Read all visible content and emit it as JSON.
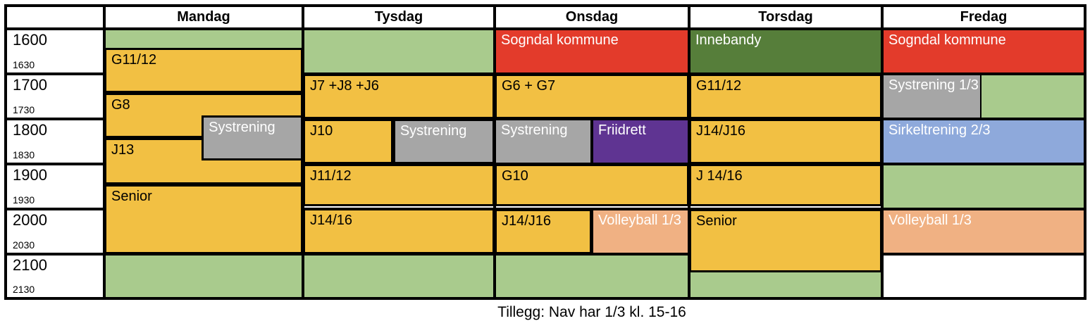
{
  "header": {
    "days": [
      "Mandag",
      "Tysdag",
      "Onsdag",
      "Torsdag",
      "Fredag"
    ]
  },
  "time_column": [
    {
      "hour": "1600",
      "half": "1630"
    },
    {
      "hour": "1700",
      "half": "1730"
    },
    {
      "hour": "1800",
      "half": "1830"
    },
    {
      "hour": "1900",
      "half": "1930"
    },
    {
      "hour": "2000",
      "half": "2030"
    },
    {
      "hour": "2100",
      "half": "2130"
    }
  ],
  "footer_note": "Tillegg: Nav har 1/3 kl. 15-16",
  "palette": {
    "yellow": "#F2C043",
    "green_light": "#A9CB8D",
    "green_dark": "#567E3A",
    "red": "#E33B2B",
    "gray": "#A6A6A6",
    "purple": "#5F3492",
    "blue": "#8EA9DB",
    "salmon": "#F0B183",
    "white": "#FFFFFF",
    "grid": "#000000"
  },
  "days": [
    {
      "name": "Mandag",
      "cells": [
        {
          "row": 0,
          "color": "green_light"
        },
        {
          "row": 1,
          "color": "white"
        },
        {
          "row": 2,
          "color": "white"
        },
        {
          "row": 3,
          "color": "white"
        },
        {
          "row": 4,
          "color": "white"
        },
        {
          "row": 5,
          "color": "green_light"
        }
      ],
      "blocks": [
        {
          "label": "G11/12",
          "color": "yellow",
          "text": "dark",
          "start": "1625",
          "end": "1725",
          "left_pct": 0,
          "width_pct": 100,
          "boxed": true
        },
        {
          "label": "G8",
          "color": "yellow",
          "text": "dark",
          "start": "1725",
          "end": "1825",
          "left_pct": 0,
          "width_pct": 100,
          "boxed": true
        },
        {
          "label": "J13",
          "color": "yellow",
          "text": "dark",
          "start": "1825",
          "end": "1927",
          "left_pct": 0,
          "width_pct": 100,
          "boxed": true
        },
        {
          "label": "Senior",
          "color": "yellow",
          "text": "dark",
          "start": "1927",
          "end": "2100",
          "left_pct": 0,
          "width_pct": 100,
          "boxed": true
        },
        {
          "label": "Systrening",
          "color": "gray",
          "text": "light",
          "start": "1755",
          "end": "1855",
          "left_pct": 49,
          "width_pct": 51,
          "boxed": true
        }
      ]
    },
    {
      "name": "Tysdag",
      "cells": [
        {
          "row": 0,
          "color": "green_light"
        },
        {
          "row": 1,
          "color": "white"
        },
        {
          "row": 2,
          "color": "white"
        },
        {
          "row": 3,
          "color": "white"
        },
        {
          "row": 4,
          "color": "white"
        },
        {
          "row": 5,
          "color": "green_light"
        }
      ],
      "blocks": [
        {
          "label": "J7 +J8 +J6",
          "color": "yellow",
          "text": "dark",
          "start": "1700",
          "end": "1800",
          "left_pct": 0,
          "width_pct": 100,
          "boxed": true
        },
        {
          "label": "J10",
          "color": "yellow",
          "text": "dark",
          "start": "1800",
          "end": "1900",
          "left_pct": 0,
          "width_pct": 47,
          "boxed": true
        },
        {
          "label": "Systrening",
          "color": "gray",
          "text": "light",
          "start": "1800",
          "end": "1900",
          "left_pct": 47,
          "width_pct": 53,
          "boxed": true
        },
        {
          "label": "J11/12",
          "color": "yellow",
          "text": "dark",
          "start": "1900",
          "end": "1956",
          "left_pct": 0,
          "width_pct": 100,
          "boxed": true
        },
        {
          "label": "J14/16",
          "color": "yellow",
          "text": "dark",
          "start": "1959",
          "end": "2100",
          "left_pct": 0,
          "width_pct": 100,
          "boxed": true
        }
      ]
    },
    {
      "name": "Onsdag",
      "cells": [
        {
          "row": 0,
          "color": "red",
          "label": "Sogndal kommune",
          "text": "light"
        },
        {
          "row": 1,
          "color": "white"
        },
        {
          "row": 2,
          "color": "white"
        },
        {
          "row": 3,
          "color": "white"
        },
        {
          "row": 4,
          "color": "white"
        },
        {
          "row": 5,
          "color": "green_light"
        }
      ],
      "blocks": [
        {
          "label": "G6 + G7",
          "color": "yellow",
          "text": "dark",
          "start": "1700",
          "end": "1800",
          "left_pct": 0,
          "width_pct": 100,
          "boxed": true
        },
        {
          "label": "Systrening",
          "color": "gray",
          "text": "light",
          "start": "1800",
          "end": "1900",
          "left_pct": 0,
          "width_pct": 50,
          "boxed": false
        },
        {
          "label": "Friidrett",
          "color": "purple",
          "text": "light",
          "start": "1800",
          "end": "1900",
          "left_pct": 50,
          "width_pct": 50,
          "boxed": false
        },
        {
          "label": "G10",
          "color": "yellow",
          "text": "dark",
          "start": "1900",
          "end": "1956",
          "left_pct": 0,
          "width_pct": 100,
          "boxed": true
        },
        {
          "label": "J14/J16",
          "color": "yellow",
          "text": "dark",
          "start": "2000",
          "end": "2100",
          "left_pct": 0,
          "width_pct": 50,
          "boxed": true
        },
        {
          "label": "Volleyball 1/3",
          "color": "salmon",
          "text": "light",
          "start": "2000",
          "end": "2100",
          "left_pct": 50,
          "width_pct": 50,
          "boxed": false
        }
      ]
    },
    {
      "name": "Torsdag",
      "cells": [
        {
          "row": 0,
          "color": "green_dark",
          "label": "Innebandy",
          "text": "light"
        },
        {
          "row": 1,
          "color": "white"
        },
        {
          "row": 2,
          "color": "white"
        },
        {
          "row": 3,
          "color": "white"
        },
        {
          "row": 4,
          "color": "white"
        },
        {
          "row": 5,
          "color": "green_light"
        }
      ],
      "blocks": [
        {
          "label": "G11/12",
          "color": "yellow",
          "text": "dark",
          "start": "1700",
          "end": "1800",
          "left_pct": 0,
          "width_pct": 100,
          "boxed": true
        },
        {
          "label": "J14/J16",
          "color": "yellow",
          "text": "dark",
          "start": "1800",
          "end": "1900",
          "left_pct": 0,
          "width_pct": 100,
          "boxed": true
        },
        {
          "label": "J 14/16",
          "color": "yellow",
          "text": "dark",
          "start": "1900",
          "end": "1956",
          "left_pct": 0,
          "width_pct": 100,
          "boxed": true
        },
        {
          "label": "Senior",
          "color": "yellow",
          "text": "dark",
          "start": "2000",
          "end": "2124",
          "left_pct": 0,
          "width_pct": 100,
          "boxed": true
        }
      ]
    },
    {
      "name": "Fredag",
      "cells": [
        {
          "row": 0,
          "color": "red",
          "label": "Sogndal kommune",
          "text": "light"
        },
        {
          "row": 1,
          "color": "green_light"
        },
        {
          "row": 2,
          "color": "blue",
          "label": "Sirkeltrening 2/3",
          "text": "light"
        },
        {
          "row": 3,
          "color": "green_light"
        },
        {
          "row": 4,
          "color": "salmon",
          "label": "Volleyball 1/3",
          "text": "light"
        },
        {
          "row": 5,
          "color": "white"
        }
      ],
      "blocks": [
        {
          "label": "Systrening 1/3",
          "color": "gray",
          "text": "light",
          "start": "1700",
          "end": "1800",
          "left_pct": 0,
          "width_pct": 49,
          "boxed": false
        }
      ]
    }
  ]
}
